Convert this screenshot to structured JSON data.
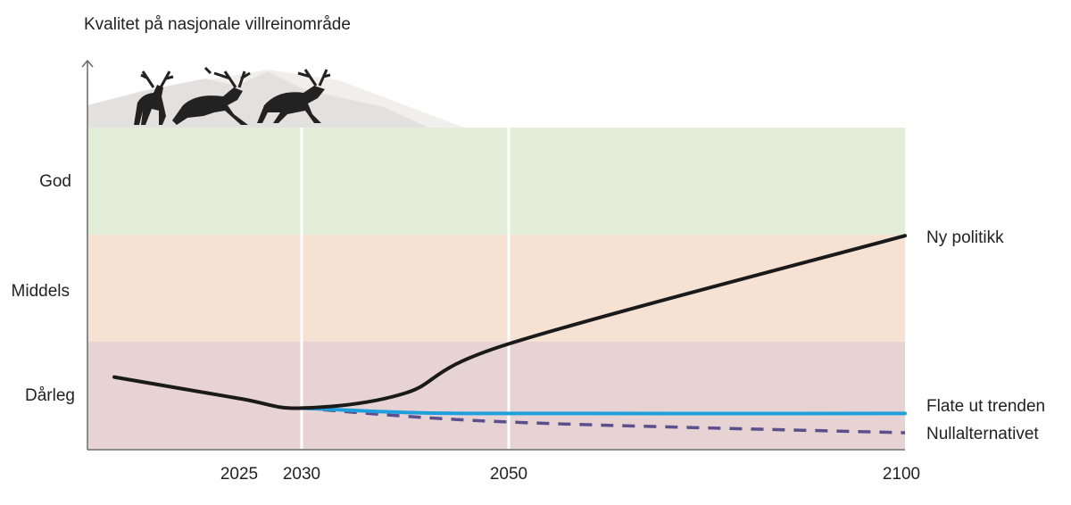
{
  "chart_data": {
    "type": "line",
    "title": "Kvalitet på nasjonale villreinområde",
    "xlabel": "",
    "ylabel": "",
    "x_ticks": [
      2025,
      2030,
      2050,
      2100
    ],
    "x_tick_labels": [
      "2025",
      "2030",
      "2050",
      "2100"
    ],
    "y_categories": [
      "Dårleg",
      "Middels",
      "God"
    ],
    "ylim": [
      0,
      3
    ],
    "bands": [
      {
        "label": "Dårleg",
        "range": [
          0,
          1
        ],
        "color": "#e7d3d4"
      },
      {
        "label": "Middels",
        "range": [
          1,
          2
        ],
        "color": "#f5e2d3"
      },
      {
        "label": "God",
        "range": [
          2,
          3
        ],
        "color": "#e3eed8"
      }
    ],
    "vertical_markers": [
      2030,
      2050
    ],
    "series": [
      {
        "name": "Ny politikk",
        "color": "#1a1a1a",
        "dash": false,
        "x": [
          2015,
          2025,
          2030,
          2040,
          2050,
          2100
        ],
        "y": [
          0.67,
          0.47,
          0.38,
          0.52,
          0.98,
          1.99
        ]
      },
      {
        "name": "Flate ut trenden",
        "color": "#1ea0dc",
        "dash": false,
        "x": [
          2030,
          2040,
          2050,
          2100
        ],
        "y": [
          0.38,
          0.34,
          0.33,
          0.33
        ]
      },
      {
        "name": "Nullalternativet",
        "color": "#5b4f8c",
        "dash": true,
        "x": [
          2030,
          2050,
          2100
        ],
        "y": [
          0.38,
          0.25,
          0.15
        ]
      }
    ],
    "grid": false,
    "legend": "right, labels at line ends"
  }
}
